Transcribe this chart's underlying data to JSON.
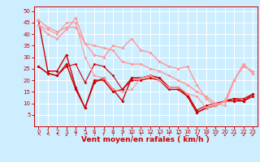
{
  "title": "",
  "xlabel": "Vent moyen/en rafales ( km/h )",
  "ylabel": "",
  "xlim": [
    -0.5,
    23.5
  ],
  "ylim": [
    0,
    52
  ],
  "yticks": [
    5,
    10,
    15,
    20,
    25,
    30,
    35,
    40,
    45,
    50
  ],
  "xticks": [
    0,
    1,
    2,
    3,
    4,
    5,
    6,
    7,
    8,
    9,
    10,
    11,
    12,
    13,
    14,
    15,
    16,
    17,
    18,
    19,
    20,
    21,
    22,
    23
  ],
  "bg_color": "#cceeff",
  "grid_color": "#ffffff",
  "series": [
    {
      "x": [
        0,
        1,
        2,
        3,
        4,
        5,
        6,
        7,
        8,
        9,
        10,
        11,
        12,
        13,
        14,
        15,
        16,
        17,
        18,
        19,
        20,
        21,
        22,
        23
      ],
      "y": [
        46,
        24,
        24,
        31,
        17,
        8,
        19,
        21,
        16,
        11,
        21,
        21,
        22,
        21,
        17,
        17,
        13,
        6,
        8,
        9,
        11,
        12,
        11,
        14
      ],
      "color": "#cc0000",
      "lw": 1.0,
      "marker": "D",
      "ms": 2.0
    },
    {
      "x": [
        0,
        1,
        2,
        3,
        4,
        5,
        6,
        7,
        8,
        9,
        10,
        11,
        12,
        13,
        14,
        15,
        16,
        17,
        18,
        19,
        20,
        21,
        22,
        23
      ],
      "y": [
        26,
        23,
        22,
        27,
        16,
        8,
        20,
        20,
        15,
        16,
        20,
        20,
        21,
        20,
        16,
        16,
        13,
        6,
        8,
        9,
        11,
        11,
        11,
        13
      ],
      "color": "#cc0000",
      "lw": 1.0,
      "marker": "D",
      "ms": 2.0
    },
    {
      "x": [
        0,
        1,
        2,
        3,
        4,
        5,
        6,
        7,
        8,
        9,
        10,
        11,
        12,
        13,
        14,
        15,
        16,
        17,
        18,
        19,
        20,
        21,
        22,
        23
      ],
      "y": [
        26,
        23,
        22,
        26,
        27,
        19,
        27,
        26,
        22,
        16,
        21,
        21,
        22,
        21,
        17,
        17,
        14,
        7,
        9,
        10,
        11,
        12,
        12,
        14
      ],
      "color": "#cc0000",
      "lw": 0.8,
      "marker": "D",
      "ms": 1.8
    },
    {
      "x": [
        0,
        1,
        2,
        3,
        4,
        5,
        6,
        7,
        8,
        9,
        10,
        11,
        12,
        13,
        14,
        15,
        16,
        17,
        18,
        19,
        20,
        21,
        22,
        23
      ],
      "y": [
        46,
        43,
        41,
        43,
        43,
        36,
        35,
        34,
        33,
        28,
        27,
        27,
        25,
        24,
        22,
        20,
        18,
        15,
        13,
        10,
        9,
        20,
        26,
        24
      ],
      "color": "#ff9999",
      "lw": 1.0,
      "marker": "D",
      "ms": 2.0
    },
    {
      "x": [
        0,
        1,
        2,
        3,
        4,
        5,
        6,
        7,
        8,
        9,
        10,
        11,
        12,
        13,
        14,
        15,
        16,
        17,
        18,
        19,
        20,
        21,
        22,
        23
      ],
      "y": [
        44,
        40,
        38,
        42,
        47,
        36,
        31,
        30,
        35,
        34,
        38,
        33,
        32,
        28,
        26,
        25,
        26,
        18,
        12,
        9,
        11,
        20,
        27,
        23
      ],
      "color": "#ff9999",
      "lw": 1.0,
      "marker": "D",
      "ms": 2.0
    },
    {
      "x": [
        0,
        1,
        2,
        3,
        4,
        5,
        6,
        7,
        8,
        9,
        10,
        11,
        12,
        13,
        14,
        15,
        16,
        17,
        18,
        19,
        20,
        21,
        22,
        23
      ],
      "y": [
        44,
        42,
        40,
        45,
        45,
        30,
        22,
        21,
        16,
        15,
        16,
        21,
        22,
        20,
        17,
        17,
        14,
        13,
        8,
        9,
        11,
        20,
        27,
        23
      ],
      "color": "#ff9999",
      "lw": 0.8,
      "marker": "D",
      "ms": 1.8
    }
  ],
  "arrow_symbols": [
    "↖",
    "↖",
    "↖",
    "↙",
    "↑",
    "↗",
    "↑",
    "↑",
    "↑",
    "↑",
    "↑",
    "↑",
    "↑",
    "↑",
    "↑",
    "↖",
    "←",
    "↙",
    "↙",
    "↙",
    "↙",
    "↙",
    "↙",
    "↙"
  ],
  "tick_fontsize": 5.0,
  "label_fontsize": 6.5,
  "arrow_fontsize": 4.5
}
